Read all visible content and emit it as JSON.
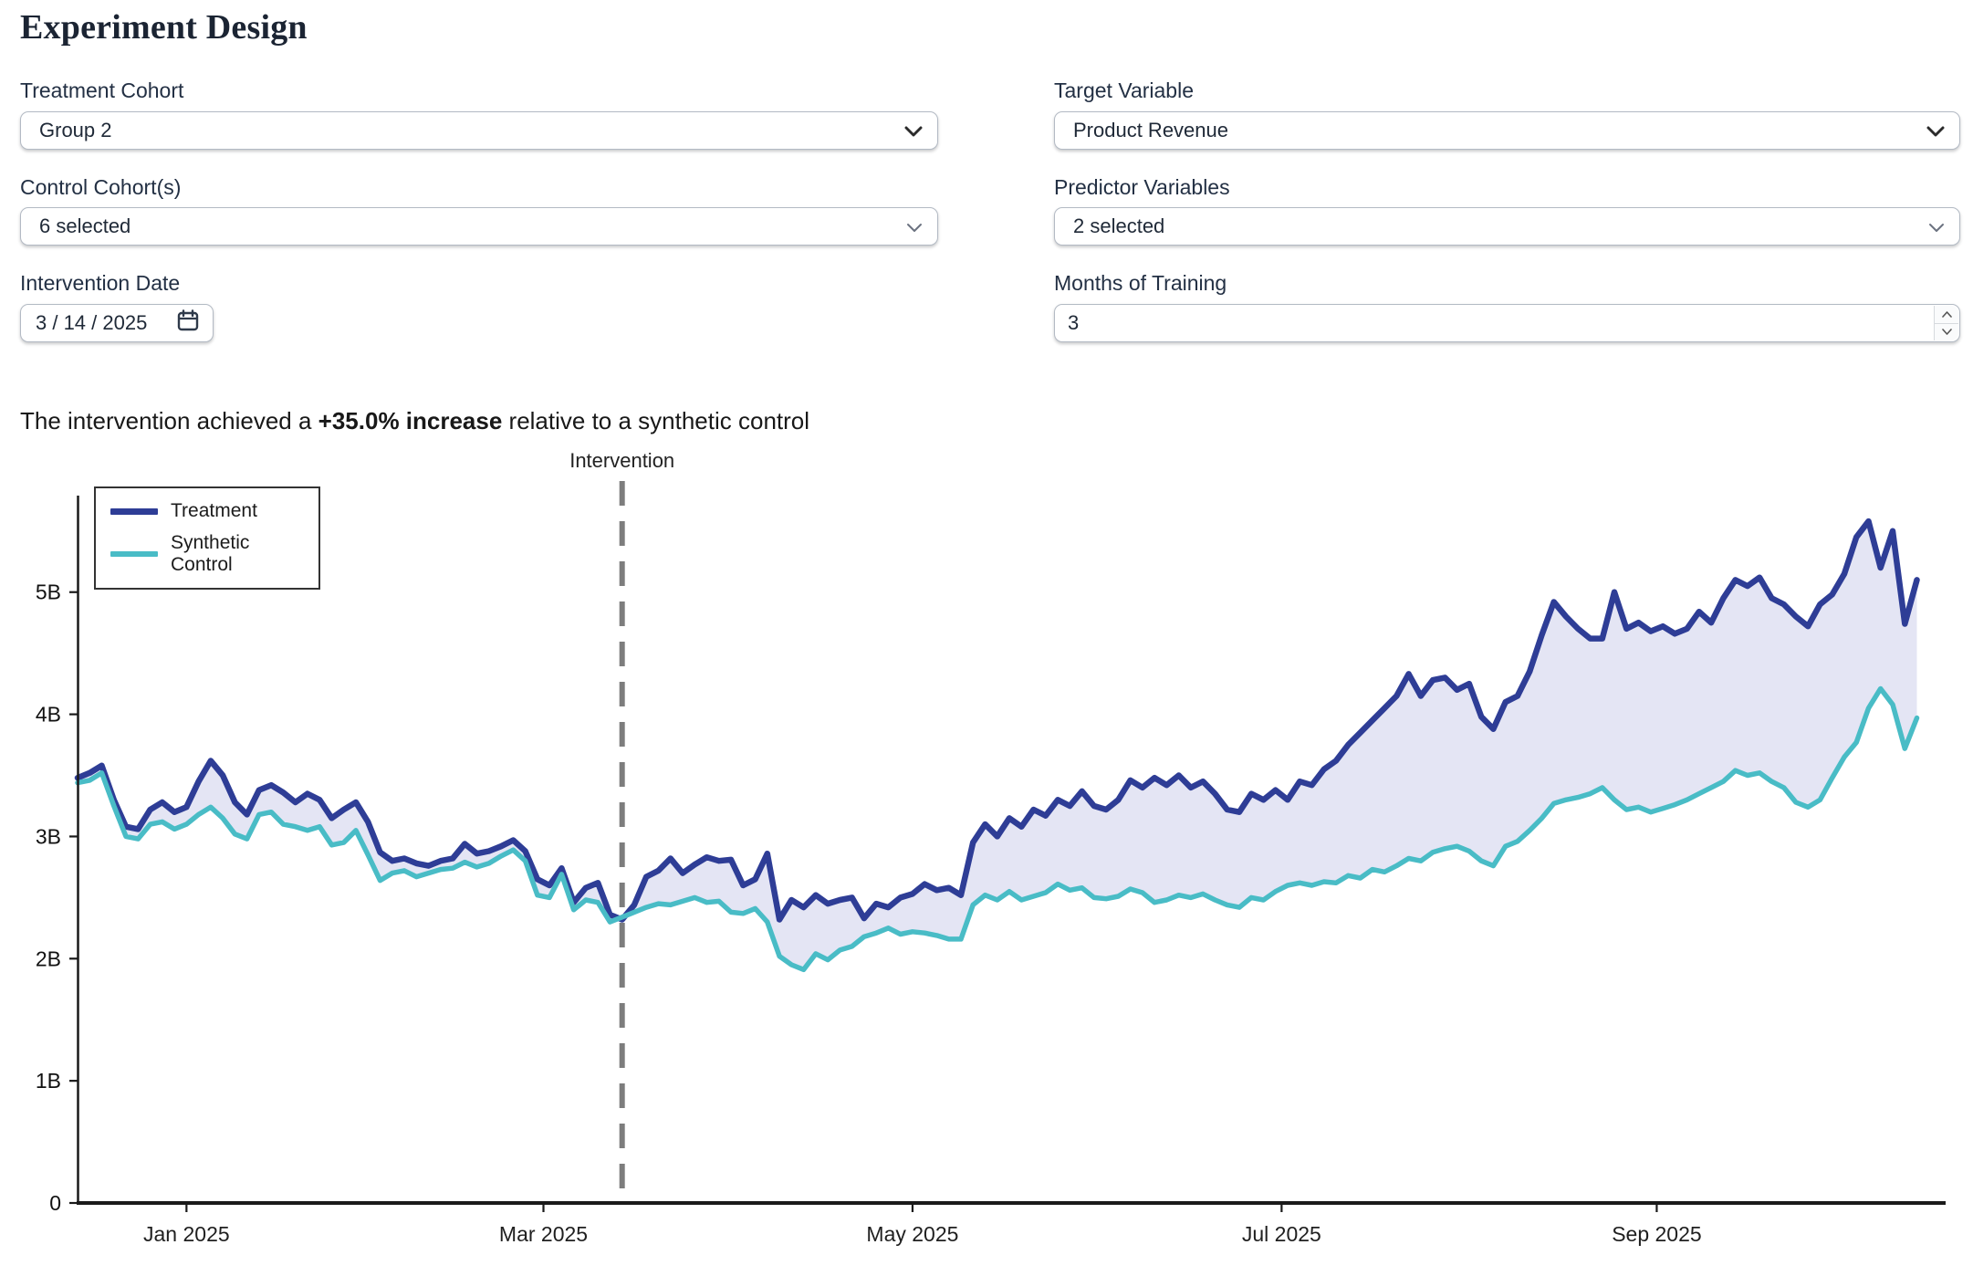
{
  "title": "Experiment Design",
  "form": {
    "treatment_cohort": {
      "label": "Treatment Cohort",
      "value": "Group 2"
    },
    "control_cohorts": {
      "label": "Control Cohort(s)",
      "value": "6 selected"
    },
    "intervention_date": {
      "label": "Intervention Date",
      "value": "3 / 14 / 2025"
    },
    "target_variable": {
      "label": "Target Variable",
      "value": "Product Revenue"
    },
    "predictor_variables": {
      "label": "Predictor Variables",
      "value": "2 selected"
    },
    "months_of_training": {
      "label": "Months of Training",
      "value": "3"
    }
  },
  "headline": {
    "prefix": "The intervention achieved a ",
    "highlight": "+35.0% increase",
    "suffix": " relative to a synthetic control"
  },
  "chart_data": {
    "type": "line",
    "x_unit": "days (2-day step) starting mid-Dec 2024",
    "x_days_step": 2,
    "ylim": [
      0,
      5.79
    ],
    "yticks": [
      {
        "value": 0,
        "label": "0"
      },
      {
        "value": 1,
        "label": "1B"
      },
      {
        "value": 2,
        "label": "2B"
      },
      {
        "value": 3,
        "label": "3B"
      },
      {
        "value": 4,
        "label": "4B"
      },
      {
        "value": 5,
        "label": "5B"
      }
    ],
    "xticks": [
      {
        "day": 18,
        "label": "Jan 2025"
      },
      {
        "day": 77,
        "label": "Mar 2025"
      },
      {
        "day": 138,
        "label": "May 2025"
      },
      {
        "day": 199,
        "label": "Jul 2025"
      },
      {
        "day": 261,
        "label": "Sep 2025"
      }
    ],
    "annotation": {
      "day": 90,
      "label": "Intervention",
      "color": "#7d7d7d"
    },
    "grid": false,
    "legend_position": "top-left",
    "fill_between_color": "#e4e5f4",
    "series": [
      {
        "name": "Treatment",
        "color": "#2e3d96",
        "stroke_width": 6.5,
        "values": [
          3.48,
          3.52,
          3.58,
          3.3,
          3.08,
          3.06,
          3.22,
          3.28,
          3.2,
          3.24,
          3.45,
          3.62,
          3.5,
          3.28,
          3.18,
          3.38,
          3.42,
          3.36,
          3.28,
          3.35,
          3.3,
          3.15,
          3.22,
          3.28,
          3.12,
          2.87,
          2.8,
          2.82,
          2.78,
          2.76,
          2.8,
          2.82,
          2.94,
          2.86,
          2.88,
          2.92,
          2.97,
          2.88,
          2.65,
          2.6,
          2.74,
          2.46,
          2.58,
          2.62,
          2.36,
          2.32,
          2.44,
          2.67,
          2.72,
          2.82,
          2.7,
          2.77,
          2.83,
          2.8,
          2.81,
          2.6,
          2.65,
          2.86,
          2.32,
          2.48,
          2.42,
          2.52,
          2.45,
          2.48,
          2.5,
          2.33,
          2.45,
          2.42,
          2.5,
          2.53,
          2.61,
          2.56,
          2.58,
          2.52,
          2.95,
          3.1,
          3.0,
          3.15,
          3.08,
          3.22,
          3.17,
          3.3,
          3.25,
          3.37,
          3.25,
          3.22,
          3.3,
          3.46,
          3.4,
          3.48,
          3.42,
          3.5,
          3.4,
          3.45,
          3.35,
          3.22,
          3.2,
          3.35,
          3.3,
          3.38,
          3.3,
          3.45,
          3.42,
          3.55,
          3.62,
          3.75,
          3.85,
          3.95,
          4.05,
          4.15,
          4.33,
          4.15,
          4.28,
          4.3,
          4.2,
          4.25,
          3.98,
          3.88,
          4.1,
          4.15,
          4.35,
          4.65,
          4.92,
          4.8,
          4.7,
          4.62,
          4.62,
          5.0,
          4.7,
          4.75,
          4.68,
          4.72,
          4.66,
          4.7,
          4.84,
          4.75,
          4.95,
          5.1,
          5.05,
          5.12,
          4.95,
          4.9,
          4.8,
          4.72,
          4.9,
          4.98,
          5.15,
          5.45,
          5.58,
          5.2,
          5.5,
          4.74,
          5.1
        ]
      },
      {
        "name": "Synthetic Control",
        "color": "#49bcc6",
        "stroke_width": 5.5,
        "values": [
          3.44,
          3.46,
          3.52,
          3.25,
          3.0,
          2.98,
          3.1,
          3.12,
          3.06,
          3.1,
          3.18,
          3.24,
          3.15,
          3.02,
          2.98,
          3.18,
          3.2,
          3.1,
          3.08,
          3.05,
          3.08,
          2.93,
          2.95,
          3.05,
          2.85,
          2.64,
          2.7,
          2.72,
          2.67,
          2.7,
          2.73,
          2.74,
          2.79,
          2.75,
          2.78,
          2.84,
          2.89,
          2.8,
          2.52,
          2.5,
          2.69,
          2.4,
          2.48,
          2.46,
          2.3,
          2.34,
          2.38,
          2.42,
          2.45,
          2.44,
          2.47,
          2.5,
          2.46,
          2.47,
          2.38,
          2.37,
          2.41,
          2.3,
          2.02,
          1.95,
          1.91,
          2.04,
          1.99,
          2.07,
          2.1,
          2.18,
          2.21,
          2.25,
          2.2,
          2.22,
          2.21,
          2.19,
          2.16,
          2.16,
          2.44,
          2.52,
          2.48,
          2.55,
          2.48,
          2.51,
          2.54,
          2.61,
          2.56,
          2.58,
          2.5,
          2.49,
          2.51,
          2.57,
          2.54,
          2.46,
          2.48,
          2.52,
          2.5,
          2.53,
          2.48,
          2.44,
          2.42,
          2.5,
          2.48,
          2.55,
          2.6,
          2.62,
          2.6,
          2.63,
          2.62,
          2.68,
          2.66,
          2.73,
          2.71,
          2.76,
          2.82,
          2.8,
          2.87,
          2.9,
          2.92,
          2.88,
          2.8,
          2.76,
          2.92,
          2.96,
          3.05,
          3.15,
          3.27,
          3.3,
          3.32,
          3.35,
          3.4,
          3.3,
          3.22,
          3.24,
          3.2,
          3.23,
          3.26,
          3.3,
          3.35,
          3.4,
          3.45,
          3.54,
          3.5,
          3.52,
          3.45,
          3.4,
          3.28,
          3.24,
          3.3,
          3.48,
          3.65,
          3.77,
          4.05,
          4.21,
          4.08,
          3.72,
          3.97
        ]
      }
    ]
  }
}
